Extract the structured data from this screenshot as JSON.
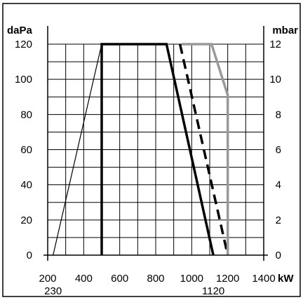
{
  "chart_data": {
    "type": "line",
    "title": "",
    "x_axis": {
      "label": "kW",
      "min": 200,
      "max": 1400,
      "ticks": [
        "200",
        "400",
        "600",
        "800",
        "1000",
        "1200",
        "1400"
      ],
      "extra_labels": [
        {
          "x": 230,
          "text": "230"
        },
        {
          "x": 1120,
          "text": "1120"
        }
      ]
    },
    "y_axis_left": {
      "label": "daPa",
      "min": 0,
      "max": 120,
      "ticks": [
        "0",
        "20",
        "40",
        "60",
        "80",
        "100",
        "120"
      ]
    },
    "y_axis_right": {
      "label": "mbar",
      "min": 0,
      "max": 12,
      "ticks": [
        "0",
        "2",
        "4",
        "6",
        "8",
        "10",
        "12"
      ]
    },
    "grid": true,
    "grid_step_x": 100,
    "grid_step_y": 10,
    "series": [
      {
        "style": "thin-black",
        "color": "#000000",
        "points": [
          [
            230,
            0
          ],
          [
            500,
            120
          ]
        ]
      },
      {
        "style": "thick-black",
        "color": "#000000",
        "points": [
          [
            500,
            0
          ],
          [
            500,
            120
          ],
          [
            860,
            120
          ],
          [
            1120,
            0
          ]
        ]
      },
      {
        "style": "dashed-black",
        "color": "#000000",
        "points": [
          [
            935,
            120
          ],
          [
            1200,
            0
          ]
        ]
      },
      {
        "style": "thick-gray",
        "color": "#999999",
        "points": [
          [
            945,
            120
          ],
          [
            1110,
            120
          ],
          [
            1200,
            91
          ],
          [
            1200,
            0
          ]
        ]
      }
    ]
  }
}
